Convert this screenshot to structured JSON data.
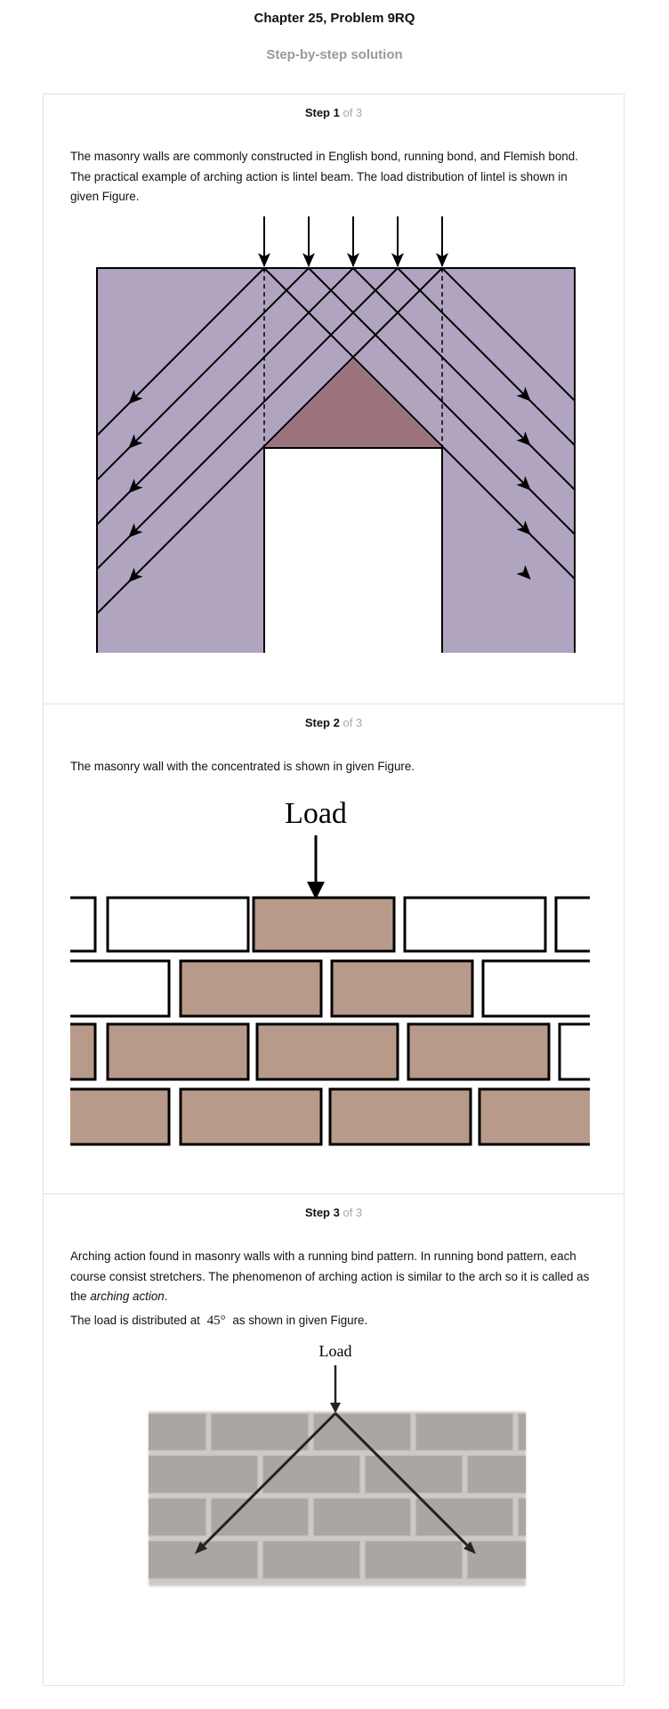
{
  "header": {
    "title": "Chapter 25, Problem 9RQ",
    "subtitle": "Step-by-step solution"
  },
  "steps": [
    {
      "label": "Step 1",
      "of": "of 3",
      "text": "The masonry walls are commonly constructed in English bond, running bond, and Flemish bond. The practical example of arching action is lintel beam. The load distribution of lintel is shown in given Figure."
    },
    {
      "label": "Step 2",
      "of": "of 3",
      "text": "The masonry wall with the concentrated is shown in given Figure.",
      "figure_label": "Load"
    },
    {
      "label": "Step 3",
      "of": "of 3",
      "text_before": "Arching action found in masonry walls with a running bind pattern. In running bond pattern, each course consist stretchers. The phenomenon of arching action is similar to the arch so it is called as the",
      "text_italic": "arching action",
      "text_after": ".",
      "load_prefix": "The load is distributed at",
      "angle": "45°",
      "load_suffix": "as shown in given Figure.",
      "figure_label": "Load"
    }
  ],
  "colors": {
    "wall_purple": "#b0a4c0",
    "arch_triangle": "#9c727c",
    "brick_fill": "#b79a8a",
    "grey_brick": "#aaa6a3",
    "grey_mortar": "#cfcac5"
  }
}
